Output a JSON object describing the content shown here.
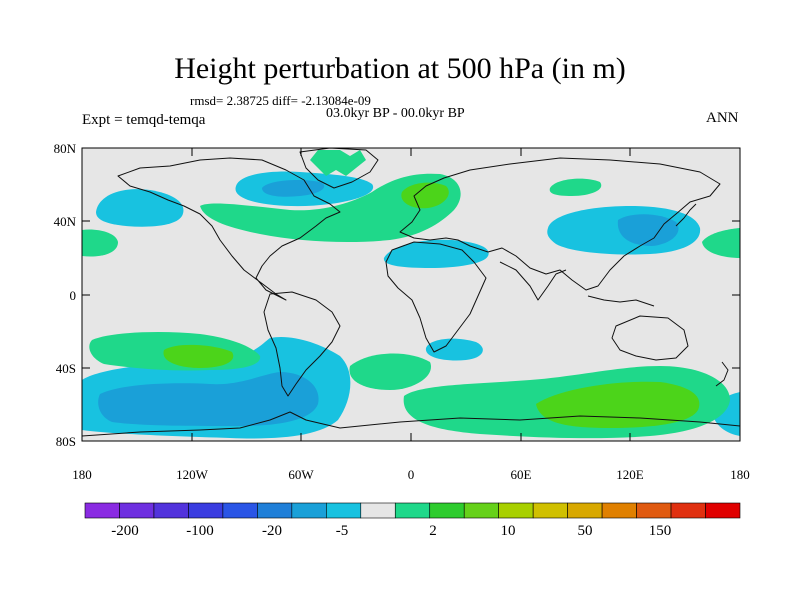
{
  "title": "Height perturbation at 500 hPa (in m)",
  "stats": "rmsd= 2.38725 diff= -2.13084e-09",
  "period": "03.0kyr BP - 00.0kyr BP",
  "experiment": "Expt = temqd-temqa",
  "season": "ANN",
  "axes": {
    "lat_ticks": [
      "80N",
      "40N",
      "0",
      "40S",
      "80S"
    ],
    "lon_ticks": [
      "180",
      "120W",
      "60W",
      "0",
      "60E",
      "120E",
      "180"
    ]
  },
  "colorbar": {
    "colors": [
      "#8a2be2",
      "#6e2fe0",
      "#5233dc",
      "#3a3ce0",
      "#2a55e6",
      "#1f7fd8",
      "#1aa0d8",
      "#18c2e0",
      "#e6e6e6",
      "#1fd88a",
      "#2ecc2e",
      "#66d11a",
      "#a8d000",
      "#d0c000",
      "#d8a800",
      "#e08000",
      "#e05a10",
      "#e03010",
      "#e00000"
    ],
    "labels": [
      "-200",
      "-100",
      "-20",
      "-5",
      "2",
      "10",
      "50",
      "150"
    ]
  },
  "map_colors": {
    "ocean": "#e6e6e6",
    "coast": "#111111",
    "neg_light": "#18c2e0",
    "neg_mid": "#1aa0d8",
    "pos_light": "#1fd88a",
    "pos_strong": "#4cd41a"
  }
}
